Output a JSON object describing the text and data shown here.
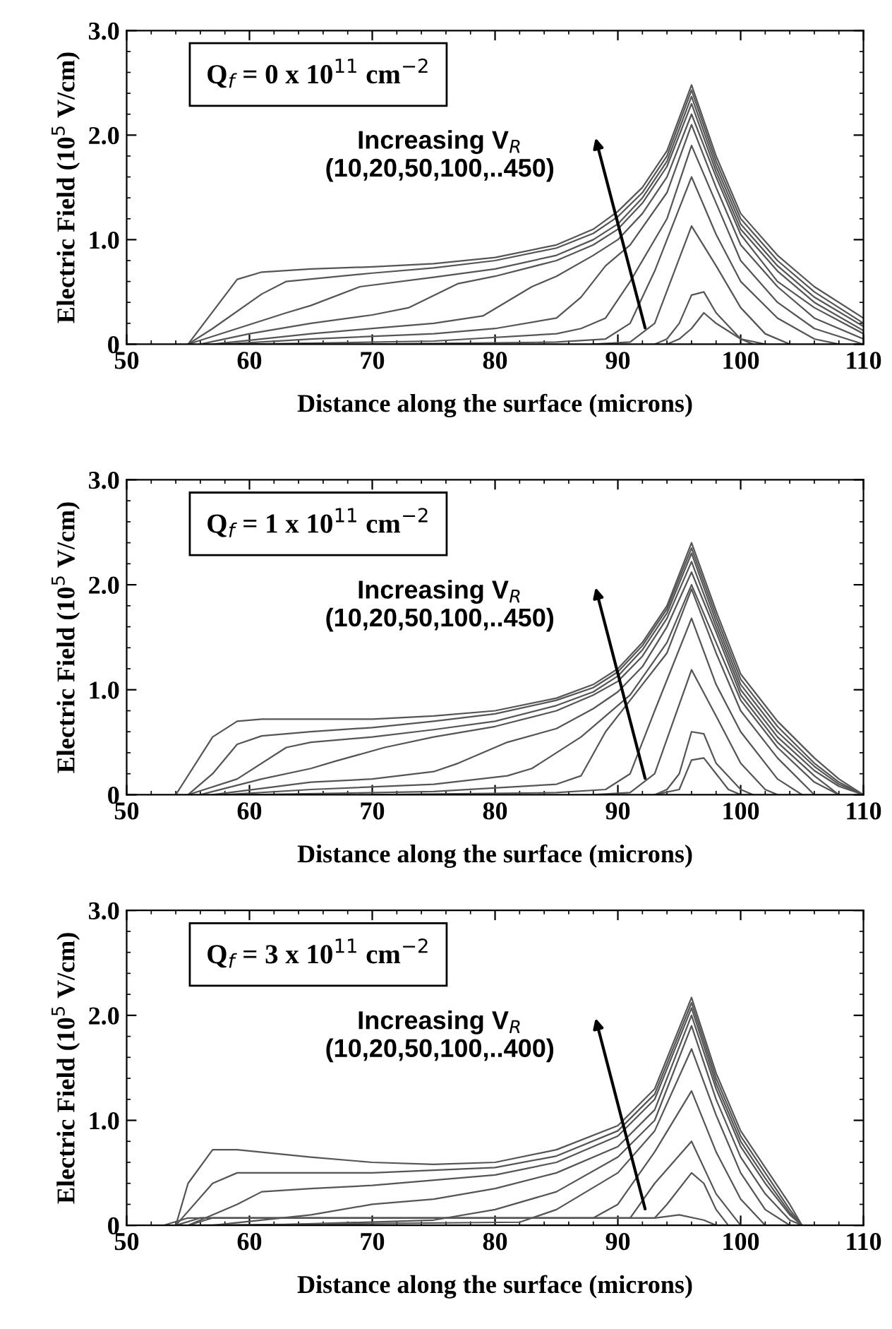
{
  "chart_data": [
    {
      "type": "line",
      "title": "Q$_{f}$ = 0 x 10$^{11}$ cm$^{−2}$",
      "xlabel": "Distance along the surface (microns)",
      "ylabel": "Electric Field (10$^{5}$ V/cm)",
      "annotations": [
        "Increasing V$_{R}$\n(10,20,50,100,..450)"
      ],
      "xlim": [
        50,
        110
      ],
      "ylim": [
        0,
        3
      ],
      "xticks": [
        50,
        60,
        70,
        80,
        90,
        100,
        110
      ],
      "yticks": [
        0,
        {
          "value": 1,
          "label": "1.0"
        },
        {
          "value": 2,
          "label": "2.0"
        },
        {
          "value": 3,
          "label": "3.0"
        }
      ],
      "grid": false,
      "legend": false,
      "marker": "none",
      "line_style": "solid",
      "series": [
        {
          "color": "#555555",
          "x": [
            55,
            59,
            61,
            65,
            70,
            75,
            80,
            85,
            88,
            90,
            92,
            94,
            96,
            98,
            100,
            103,
            106,
            110
          ],
          "values": [
            0,
            0.62,
            0.69,
            0.72,
            0.74,
            0.77,
            0.83,
            0.95,
            1.1,
            1.27,
            1.5,
            1.85,
            2.48,
            1.8,
            1.25,
            0.85,
            0.55,
            0.25
          ]
        },
        {
          "color": "#555555",
          "x": [
            55,
            57,
            61,
            63,
            70,
            75,
            80,
            85,
            88,
            90,
            92,
            94,
            96,
            98,
            100,
            103,
            106,
            110
          ],
          "values": [
            0,
            0.15,
            0.48,
            0.6,
            0.68,
            0.73,
            0.8,
            0.92,
            1.06,
            1.22,
            1.45,
            1.8,
            2.43,
            1.75,
            1.2,
            0.8,
            0.5,
            0.2
          ]
        },
        {
          "color": "#555555",
          "x": [
            55,
            59,
            63,
            65,
            69,
            75,
            80,
            85,
            88,
            90,
            92,
            94,
            96,
            98,
            100,
            103,
            106,
            110
          ],
          "values": [
            0,
            0.15,
            0.3,
            0.37,
            0.55,
            0.64,
            0.72,
            0.85,
            1.0,
            1.15,
            1.4,
            1.75,
            2.37,
            1.7,
            1.15,
            0.75,
            0.45,
            0.17
          ]
        },
        {
          "color": "#555555",
          "x": [
            56,
            60,
            65,
            70,
            73,
            77,
            80,
            85,
            88,
            90,
            92,
            94,
            96,
            98,
            100,
            103,
            106,
            110
          ],
          "values": [
            0,
            0.1,
            0.2,
            0.28,
            0.35,
            0.58,
            0.65,
            0.8,
            0.95,
            1.1,
            1.35,
            1.7,
            2.3,
            1.65,
            1.1,
            0.7,
            0.4,
            0.13
          ]
        },
        {
          "color": "#555555",
          "x": [
            57,
            65,
            70,
            75,
            79,
            83,
            85,
            88,
            90,
            92,
            94,
            96,
            98,
            100,
            103,
            106,
            110
          ],
          "values": [
            0,
            0.1,
            0.15,
            0.2,
            0.27,
            0.55,
            0.65,
            0.85,
            1.0,
            1.25,
            1.6,
            2.2,
            1.6,
            1.05,
            0.6,
            0.35,
            0.1
          ]
        },
        {
          "color": "#555555",
          "x": [
            58,
            65,
            75,
            80,
            85,
            87,
            89,
            91,
            94,
            96,
            98,
            100,
            103,
            106,
            110
          ],
          "values": [
            0,
            0.05,
            0.1,
            0.15,
            0.25,
            0.45,
            0.75,
            0.95,
            1.45,
            2.1,
            1.5,
            0.95,
            0.55,
            0.25,
            0.05
          ]
        },
        {
          "color": "#555555",
          "x": [
            60,
            75,
            85,
            87,
            89,
            91,
            94,
            96,
            98,
            100,
            103,
            106,
            110
          ],
          "values": [
            0,
            0.03,
            0.1,
            0.15,
            0.25,
            0.6,
            1.2,
            1.9,
            1.35,
            0.8,
            0.4,
            0.15,
            0
          ]
        },
        {
          "color": "#555555",
          "x": [
            70,
            85,
            89,
            91,
            93,
            96,
            98,
            100,
            103,
            106,
            108
          ],
          "values": [
            0,
            0.02,
            0.05,
            0.2,
            0.7,
            1.6,
            1.05,
            0.6,
            0.25,
            0.05,
            0
          ]
        },
        {
          "color": "#555555",
          "x": [
            88,
            91,
            93,
            96,
            98,
            100,
            102,
            104
          ],
          "values": [
            0,
            0.02,
            0.2,
            1.13,
            0.75,
            0.35,
            0.1,
            0
          ]
        },
        {
          "color": "#555555",
          "x": [
            93,
            94,
            95,
            96,
            97,
            98,
            100,
            102
          ],
          "values": [
            0,
            0.05,
            0.2,
            0.47,
            0.5,
            0.3,
            0.05,
            0
          ]
        },
        {
          "color": "#555555",
          "x": [
            94,
            95,
            96,
            97,
            98,
            100,
            101
          ],
          "values": [
            0,
            0.05,
            0.15,
            0.3,
            0.2,
            0.05,
            0
          ]
        }
      ]
    },
    {
      "type": "line",
      "title": "Q$_{f}$ = 1 x 10$^{11}$ cm$^{−2}$",
      "xlabel": "Distance along the surface (microns)",
      "ylabel": "Electric Field (10$^{5}$ V/cm)",
      "annotations": [
        "Increasing V$_{R}$\n(10,20,50,100,..450)"
      ],
      "xlim": [
        50,
        110
      ],
      "ylim": [
        0,
        3
      ],
      "xticks": [
        50,
        60,
        70,
        80,
        90,
        100,
        110
      ],
      "yticks": [
        0,
        {
          "value": 1,
          "label": "1.0"
        },
        {
          "value": 2,
          "label": "2.0"
        },
        {
          "value": 3,
          "label": "3.0"
        }
      ],
      "grid": false,
      "legend": false,
      "marker": "none",
      "line_style": "solid",
      "series": [
        {
          "color": "#555555",
          "x": [
            54,
            57,
            59,
            61,
            65,
            70,
            75,
            80,
            85,
            88,
            90,
            92,
            94,
            96,
            98,
            100,
            103,
            106,
            108,
            110
          ],
          "values": [
            0,
            0.55,
            0.7,
            0.72,
            0.72,
            0.72,
            0.75,
            0.8,
            0.92,
            1.05,
            1.2,
            1.45,
            1.8,
            2.4,
            1.75,
            1.15,
            0.7,
            0.35,
            0.15,
            0
          ]
        },
        {
          "color": "#555555",
          "x": [
            55,
            57,
            59,
            61,
            65,
            70,
            75,
            80,
            85,
            88,
            90,
            92,
            94,
            96,
            98,
            100,
            103,
            106,
            108,
            110
          ],
          "values": [
            0,
            0.2,
            0.48,
            0.56,
            0.6,
            0.64,
            0.7,
            0.77,
            0.9,
            1.02,
            1.17,
            1.42,
            1.77,
            2.35,
            1.7,
            1.1,
            0.65,
            0.3,
            0.12,
            0
          ]
        },
        {
          "color": "#555555",
          "x": [
            55,
            59,
            63,
            65,
            70,
            75,
            80,
            85,
            88,
            90,
            92,
            94,
            96,
            98,
            100,
            103,
            106,
            108,
            110
          ],
          "values": [
            0,
            0.15,
            0.45,
            0.5,
            0.55,
            0.62,
            0.7,
            0.85,
            0.98,
            1.13,
            1.38,
            1.73,
            2.3,
            1.65,
            1.05,
            0.6,
            0.27,
            0.1,
            0
          ]
        },
        {
          "color": "#555555",
          "x": [
            56,
            61,
            65,
            67,
            71,
            75,
            80,
            85,
            88,
            90,
            92,
            94,
            96,
            98,
            100,
            103,
            106,
            108,
            110
          ],
          "values": [
            0,
            0.15,
            0.25,
            0.32,
            0.45,
            0.55,
            0.65,
            0.8,
            0.95,
            1.08,
            1.32,
            1.68,
            2.22,
            1.6,
            1.0,
            0.55,
            0.23,
            0.08,
            0
          ]
        },
        {
          "color": "#555555",
          "x": [
            57,
            65,
            70,
            75,
            77,
            81,
            85,
            88,
            90,
            92,
            94,
            96,
            98,
            100,
            103,
            106,
            108
          ],
          "values": [
            0,
            0.12,
            0.15,
            0.22,
            0.3,
            0.5,
            0.63,
            0.82,
            0.98,
            1.22,
            1.6,
            2.12,
            1.55,
            0.95,
            0.5,
            0.18,
            0
          ]
        },
        {
          "color": "#555555",
          "x": [
            58,
            65,
            75,
            81,
            83,
            87,
            89,
            91,
            94,
            96,
            98,
            100,
            103,
            106,
            108
          ],
          "values": [
            0,
            0.05,
            0.1,
            0.18,
            0.25,
            0.55,
            0.75,
            0.95,
            1.45,
            2.0,
            1.45,
            0.9,
            0.45,
            0.12,
            0
          ]
        },
        {
          "color": "#555555",
          "x": [
            60,
            75,
            85,
            87,
            89,
            91,
            94,
            96,
            98,
            100,
            103,
            106
          ],
          "values": [
            0,
            0.03,
            0.1,
            0.18,
            0.6,
            0.9,
            1.35,
            1.96,
            1.35,
            0.8,
            0.35,
            0
          ]
        },
        {
          "color": "#555555",
          "x": [
            70,
            85,
            89,
            91,
            93,
            96,
            98,
            100,
            103,
            105
          ],
          "values": [
            0,
            0.02,
            0.05,
            0.2,
            0.8,
            1.68,
            1.05,
            0.6,
            0.15,
            0
          ]
        },
        {
          "color": "#555555",
          "x": [
            88,
            91,
            93,
            96,
            98,
            100,
            102,
            103
          ],
          "values": [
            0,
            0.02,
            0.2,
            1.19,
            0.75,
            0.3,
            0.05,
            0
          ]
        },
        {
          "color": "#555555",
          "x": [
            93,
            94,
            95,
            96,
            97,
            98,
            100,
            101
          ],
          "values": [
            0,
            0.05,
            0.2,
            0.6,
            0.58,
            0.3,
            0.05,
            0
          ]
        },
        {
          "color": "#555555",
          "x": [
            93,
            95,
            96,
            97,
            98,
            99,
            100
          ],
          "values": [
            0,
            0.05,
            0.33,
            0.35,
            0.2,
            0.05,
            0
          ]
        }
      ]
    },
    {
      "type": "line",
      "title": "Q$_{f}$ = 3 x 10$^{11}$ cm$^{−2}$",
      "xlabel": "Distance along the surface (microns)",
      "ylabel": "Electric Field (10$^{5}$ V/cm)",
      "annotations": [
        "Increasing V$_{R}$\n(10,20,50,100,..400)"
      ],
      "xlim": [
        50,
        110
      ],
      "ylim": [
        0,
        3
      ],
      "xticks": [
        50,
        60,
        70,
        80,
        90,
        100,
        110
      ],
      "yticks": [
        0,
        {
          "value": 1,
          "label": "1.0"
        },
        {
          "value": 2,
          "label": "2.0"
        },
        {
          "value": 3,
          "label": "3.0"
        }
      ],
      "grid": false,
      "legend": false,
      "marker": "none",
      "line_style": "solid",
      "series": [
        {
          "color": "#555555",
          "x": [
            54,
            55,
            57,
            59,
            65,
            70,
            75,
            80,
            85,
            90,
            93,
            96,
            98,
            100,
            102,
            104,
            105,
            110
          ],
          "values": [
            0,
            0.4,
            0.72,
            0.72,
            0.65,
            0.6,
            0.58,
            0.6,
            0.72,
            0.95,
            1.3,
            2.17,
            1.45,
            0.9,
            0.55,
            0.2,
            0,
            0
          ]
        },
        {
          "color": "#555555",
          "x": [
            54,
            57,
            59,
            65,
            70,
            80,
            85,
            90,
            93,
            96,
            98,
            100,
            102,
            104,
            105
          ],
          "values": [
            0,
            0.4,
            0.5,
            0.5,
            0.5,
            0.55,
            0.66,
            0.9,
            1.25,
            2.12,
            1.4,
            0.85,
            0.5,
            0.15,
            0
          ]
        },
        {
          "color": "#555555",
          "x": [
            55,
            59,
            61,
            65,
            70,
            80,
            85,
            90,
            93,
            96,
            98,
            100,
            102,
            104,
            105
          ],
          "values": [
            0,
            0.2,
            0.32,
            0.35,
            0.38,
            0.48,
            0.6,
            0.85,
            1.2,
            2.07,
            1.35,
            0.8,
            0.45,
            0.12,
            0
          ]
        },
        {
          "color": "#555555",
          "x": [
            57,
            65,
            70,
            75,
            80,
            85,
            90,
            93,
            96,
            98,
            100,
            102,
            104,
            105
          ],
          "values": [
            0,
            0.1,
            0.2,
            0.25,
            0.35,
            0.5,
            0.75,
            1.1,
            2.0,
            1.3,
            0.75,
            0.4,
            0.1,
            0
          ]
        },
        {
          "color": "#555555",
          "x": [
            61,
            75,
            80,
            85,
            90,
            93,
            96,
            98,
            100,
            102,
            104,
            105
          ],
          "values": [
            0,
            0.05,
            0.15,
            0.32,
            0.65,
            1.0,
            1.9,
            1.2,
            0.65,
            0.3,
            0.05,
            0
          ]
        },
        {
          "color": "#555555",
          "x": [
            55,
            82,
            85,
            90,
            93,
            96,
            98,
            100,
            102,
            104
          ],
          "values": [
            0,
            0.03,
            0.15,
            0.5,
            0.9,
            1.68,
            1.05,
            0.5,
            0.15,
            0
          ]
        },
        {
          "color": "#555555",
          "x": [
            55,
            57,
            88,
            90,
            93,
            96,
            98,
            100,
            102
          ],
          "values": [
            0,
            0.07,
            0.07,
            0.2,
            0.7,
            1.28,
            0.7,
            0.25,
            0
          ]
        },
        {
          "color": "#555555",
          "x": [
            53,
            55,
            91,
            93,
            96,
            98,
            100
          ],
          "values": [
            0,
            0.07,
            0.07,
            0.4,
            0.8,
            0.3,
            0
          ]
        },
        {
          "color": "#555555",
          "x": [
            56,
            93,
            94,
            96,
            97,
            98,
            99
          ],
          "values": [
            0.07,
            0.07,
            0.2,
            0.5,
            0.4,
            0.15,
            0
          ]
        },
        {
          "color": "#555555",
          "x": [
            54,
            56,
            93,
            95,
            97,
            98
          ],
          "values": [
            0,
            0.07,
            0.07,
            0.1,
            0.05,
            0
          ]
        }
      ]
    }
  ]
}
